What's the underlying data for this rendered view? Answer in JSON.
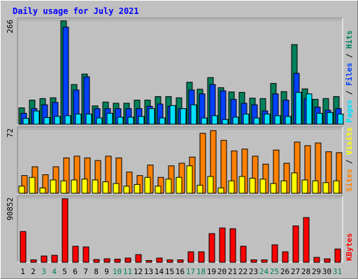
{
  "colors": {
    "background": "#c0c0c0",
    "hits": "#00805c",
    "files": "#0040ff",
    "pages": "#00e0ff",
    "visits": "#ffff00",
    "sites": "#ff8000",
    "kbytes": "#ff0000",
    "title": "#0000ff",
    "weekend_day": "#00805c",
    "weekday_day": "#000000"
  },
  "chart_data": {
    "type": "bar",
    "title": "Daily usage for July 2021",
    "categories": [
      "1",
      "2",
      "3",
      "4",
      "5",
      "6",
      "7",
      "8",
      "9",
      "10",
      "11",
      "12",
      "13",
      "14",
      "15",
      "16",
      "17",
      "18",
      "19",
      "20",
      "21",
      "22",
      "23",
      "24",
      "25",
      "26",
      "27",
      "28",
      "29",
      "30",
      "31"
    ],
    "weekend_days": [
      "3",
      "4",
      "10",
      "11",
      "17",
      "18",
      "24",
      "25",
      "31"
    ],
    "panels": [
      {
        "name": "top",
        "ymax": 266,
        "ymax_label": "266",
        "legend": [
          {
            "text": "Hits",
            "color": "#00805c"
          },
          {
            "text": " / ",
            "color": "#000000"
          },
          {
            "text": "Files",
            "color": "#0040ff"
          },
          {
            "text": " / ",
            "color": "#000000"
          },
          {
            "text": "Pages",
            "color": "#00e0ff"
          }
        ],
        "series": [
          {
            "name": "Hits",
            "values": [
              42,
              62,
              66,
              68,
              266,
              102,
              129,
              47,
              57,
              54,
              54,
              62,
              62,
              71,
              71,
              68,
              108,
              90,
              120,
              94,
              83,
              82,
              67,
              66,
              105,
              84,
              205,
              91,
              64,
              66,
              71
            ]
          },
          {
            "name": "Files",
            "values": [
              28,
              40,
              50,
              56,
              250,
              88,
              122,
              40,
              40,
              40,
              40,
              40,
              46,
              52,
              46,
              40,
              88,
              78,
              102,
              86,
              64,
              54,
              50,
              34,
              78,
              62,
              131,
              66,
              44,
              36,
              40
            ]
          },
          {
            "name": "Pages",
            "values": [
              15,
              34,
              17,
              20,
              22,
              26,
              26,
              16,
              28,
              18,
              18,
              20,
              40,
              16,
              48,
              40,
              50,
              16,
              22,
              12,
              18,
              26,
              16,
              26,
              22,
              20,
              82,
              78,
              28,
              30,
              26
            ]
          }
        ]
      },
      {
        "name": "middle",
        "ymax": 72,
        "ymax_label": "72",
        "legend": [
          {
            "text": "Visits",
            "color": "#ffff00"
          },
          {
            "text": " / ",
            "color": "#000000"
          },
          {
            "text": "Sites",
            "color": "#ff8000"
          }
        ],
        "series": [
          {
            "name": "Visits",
            "values": [
              8,
              18,
              6,
              15,
              14,
              15,
              16,
              15,
              13,
              11,
              8,
              10,
              18,
              8,
              16,
              18,
              31,
              9,
              19,
              6,
              14,
              19,
              17,
              16,
              11,
              14,
              23,
              15,
              14,
              12,
              14
            ]
          },
          {
            "name": "Sites",
            "values": [
              20,
              30,
              21,
              30,
              40,
              42,
              40,
              37,
              42,
              40,
              24,
              20,
              32,
              18,
              31,
              34,
              41,
              68,
              71,
              60,
              48,
              50,
              42,
              33,
              49,
              34,
              58,
              54,
              57,
              47,
              46
            ]
          }
        ]
      },
      {
        "name": "bottom",
        "ymax": 90852,
        "ymax_label": "90852",
        "legend": [
          {
            "text": "KBytes",
            "color": "#ff0000"
          }
        ],
        "series": [
          {
            "name": "KBytes",
            "values": [
              44000,
              3500,
              9000,
              10000,
              90852,
              23000,
              22000,
              4000,
              5000,
              4500,
              6000,
              11000,
              2500,
              6000,
              3500,
              3500,
              15000,
              15000,
              41000,
              49000,
              48000,
              23000,
              3500,
              3500,
              25000,
              15000,
              52000,
              64000,
              7000,
              5000,
              19000
            ]
          }
        ]
      }
    ]
  }
}
